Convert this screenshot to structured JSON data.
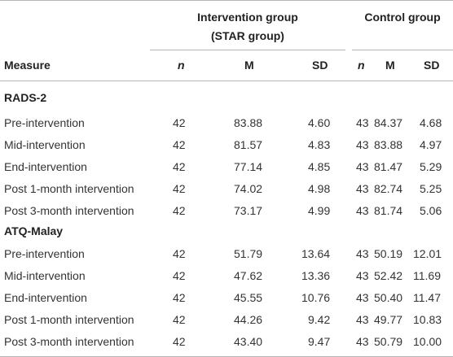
{
  "table": {
    "group_headers": {
      "intervention_line1": "Intervention group",
      "intervention_line2": "(STAR group)",
      "control": "Control group"
    },
    "column_headers": {
      "measure": "Measure",
      "int_n": "n",
      "int_m": "M",
      "int_sd": "SD",
      "ctl_n": "n",
      "ctl_m": "M",
      "ctl_sd": "SD"
    },
    "sections": [
      {
        "title": "RADS-2",
        "rows": [
          {
            "label": "Pre-intervention",
            "int_n": "42",
            "int_m": "83.88",
            "int_sd": "4.60",
            "ctl_n": "43",
            "ctl_m": "84.37",
            "ctl_sd": "4.68"
          },
          {
            "label": "Mid-intervention",
            "int_n": "42",
            "int_m": "81.57",
            "int_sd": "4.83",
            "ctl_n": "43",
            "ctl_m": "83.88",
            "ctl_sd": "4.97"
          },
          {
            "label": "End-intervention",
            "int_n": "42",
            "int_m": "77.14",
            "int_sd": "4.85",
            "ctl_n": "43",
            "ctl_m": "81.47",
            "ctl_sd": "5.29"
          },
          {
            "label": "Post 1-month intervention",
            "int_n": "42",
            "int_m": "74.02",
            "int_sd": "4.98",
            "ctl_n": "43",
            "ctl_m": "82.74",
            "ctl_sd": "5.25"
          },
          {
            "label": "Post 3-month intervention",
            "int_n": "42",
            "int_m": "73.17",
            "int_sd": "4.99",
            "ctl_n": "43",
            "ctl_m": "81.74",
            "ctl_sd": "5.06"
          }
        ]
      },
      {
        "title": "ATQ-Malay",
        "rows": [
          {
            "label": "Pre-intervention",
            "int_n": "42",
            "int_m": "51.79",
            "int_sd": "13.64",
            "ctl_n": "43",
            "ctl_m": "50.19",
            "ctl_sd": "12.01"
          },
          {
            "label": "Mid-intervention",
            "int_n": "42",
            "int_m": "47.62",
            "int_sd": "13.36",
            "ctl_n": "43",
            "ctl_m": "52.42",
            "ctl_sd": "11.69"
          },
          {
            "label": "End-intervention",
            "int_n": "42",
            "int_m": "45.55",
            "int_sd": "10.76",
            "ctl_n": "43",
            "ctl_m": "50.40",
            "ctl_sd": "11.47"
          },
          {
            "label": "Post 1-month intervention",
            "int_n": "42",
            "int_m": "44.26",
            "int_sd": "9.42",
            "ctl_n": "43",
            "ctl_m": "49.77",
            "ctl_sd": "10.83"
          },
          {
            "label": "Post 3-month intervention",
            "int_n": "42",
            "int_m": "43.40",
            "int_sd": "9.47",
            "ctl_n": "43",
            "ctl_m": "50.79",
            "ctl_sd": "10.00"
          }
        ]
      }
    ]
  }
}
